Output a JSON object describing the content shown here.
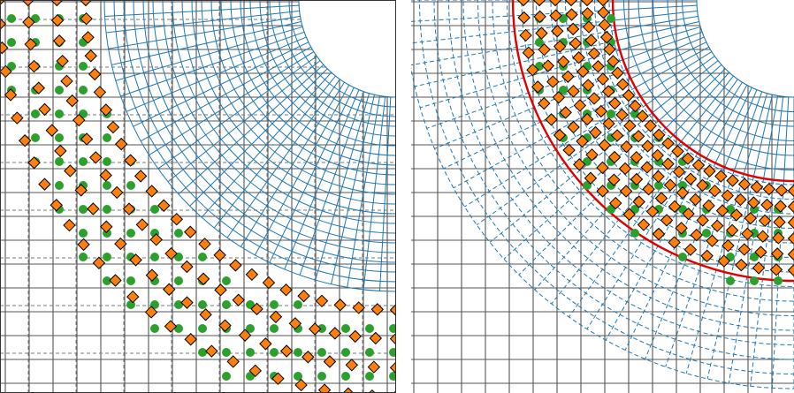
{
  "colors": {
    "background_grid": "#555555",
    "fine_grid": "#7a7a7a",
    "polar_grid": "#1f77b4",
    "boundary": "#e00000",
    "marker_circle": "#2ca02c",
    "marker_diamond": "#ff7f0e",
    "marker_edge": "#000000"
  },
  "panels": [
    {
      "id": "left",
      "description_visible_text": "",
      "polar_grid_style": "solid",
      "has_boundary_arcs": false,
      "has_frame": true
    },
    {
      "id": "right",
      "description_visible_text": "",
      "polar_grid_style": "solid-inner dashed-outer",
      "has_boundary_arcs": true,
      "has_frame": false
    }
  ],
  "icons": [
    "circle-marker-icon",
    "diamond-marker-icon"
  ]
}
